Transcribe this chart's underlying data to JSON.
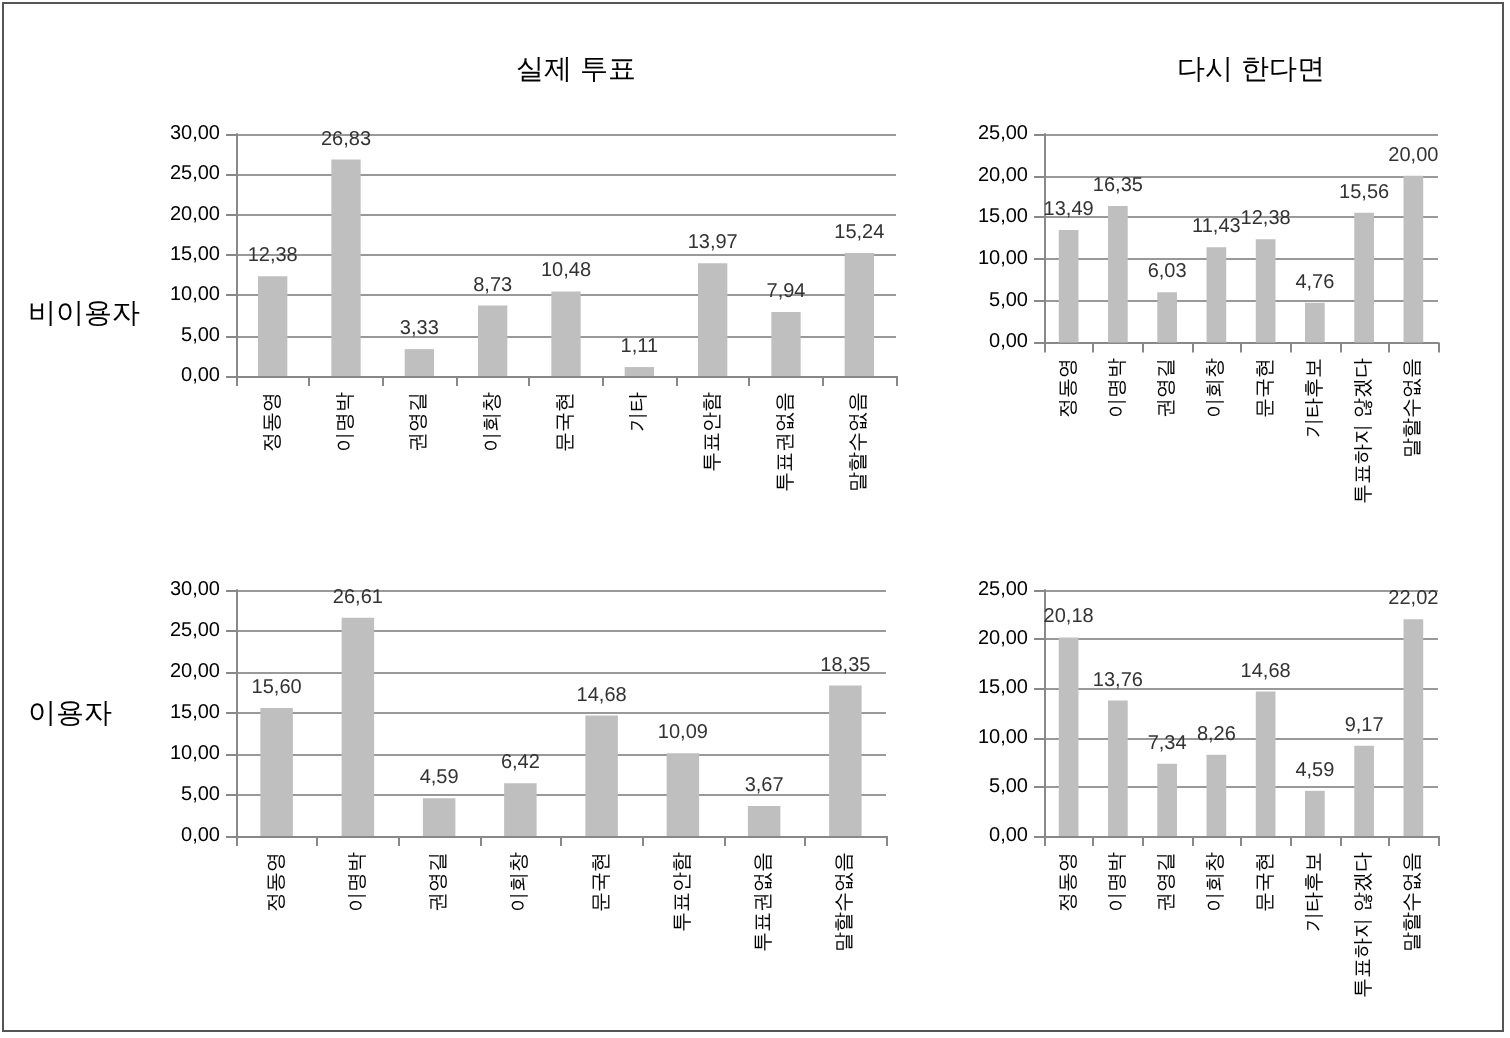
{
  "chart_data": [
    {
      "type": "bar",
      "title": "실제 투표",
      "annotations": [
        "비이용자"
      ],
      "categories": [
        "정동영",
        "이명박",
        "권영길",
        "이회창",
        "문국현",
        "기타",
        "투표안함",
        "투표권없음",
        "말할수없음"
      ],
      "values": [
        12.38,
        26.83,
        3.33,
        8.73,
        10.48,
        1.11,
        13.97,
        7.94,
        15.24
      ],
      "value_labels": [
        "12,38",
        "26,83",
        "3,33",
        "8,73",
        "10,48",
        "1,11",
        "13,97",
        "7,94",
        "15,24"
      ],
      "color": "#bfbfbf",
      "ylim": [
        0,
        30
      ],
      "yticks": [
        {
          "value": 0,
          "label": "0,00"
        },
        {
          "value": 5,
          "label": "5,00"
        },
        {
          "value": 10,
          "label": "10,00"
        },
        {
          "value": 15,
          "label": "15,00"
        },
        {
          "value": 20,
          "label": "20,00"
        },
        {
          "value": 25,
          "label": "25,00"
        },
        {
          "value": 30,
          "label": "30,00"
        }
      ],
      "grid": "y"
    },
    {
      "type": "bar",
      "title": "다시 한다면",
      "categories": [
        "정동영",
        "이명박",
        "권영길",
        "이회창",
        "문국현",
        "기타후보",
        "투표하지 않겠다",
        "말할수없음"
      ],
      "values": [
        13.49,
        16.35,
        6.03,
        11.43,
        12.38,
        4.76,
        15.56,
        20.0
      ],
      "value_labels": [
        "13,49",
        "16,35",
        "6,03",
        "11,43",
        "12,38",
        "4,76",
        "15,56",
        "20,00"
      ],
      "color": "#bfbfbf",
      "ylim": [
        0,
        25
      ],
      "yticks": [
        {
          "value": 0,
          "label": "0,00"
        },
        {
          "value": 5,
          "label": "5,00"
        },
        {
          "value": 10,
          "label": "10,00"
        },
        {
          "value": 15,
          "label": "15,00"
        },
        {
          "value": 20,
          "label": "20,00"
        },
        {
          "value": 25,
          "label": "25,00"
        }
      ],
      "grid": "y"
    },
    {
      "type": "bar",
      "annotations": [
        "이용자"
      ],
      "categories": [
        "정동영",
        "이명박",
        "권영길",
        "이회창",
        "문국현",
        "투표안함",
        "투표권없음",
        "말할수없음"
      ],
      "values": [
        15.6,
        26.61,
        4.59,
        6.42,
        14.68,
        10.09,
        3.67,
        18.35
      ],
      "value_labels": [
        "15,60",
        "26,61",
        "4,59",
        "6,42",
        "14,68",
        "10,09",
        "3,67",
        "18,35"
      ],
      "color": "#bfbfbf",
      "ylim": [
        0,
        30
      ],
      "yticks": [
        {
          "value": 0,
          "label": "0,00"
        },
        {
          "value": 5,
          "label": "5,00"
        },
        {
          "value": 10,
          "label": "10,00"
        },
        {
          "value": 15,
          "label": "15,00"
        },
        {
          "value": 20,
          "label": "20,00"
        },
        {
          "value": 25,
          "label": "25,00"
        },
        {
          "value": 30,
          "label": "30,00"
        }
      ],
      "grid": "y"
    },
    {
      "type": "bar",
      "categories": [
        "정동영",
        "이명박",
        "권영길",
        "이회창",
        "문국현",
        "기타후보",
        "투표하지 않겠다",
        "말할수없음"
      ],
      "values": [
        20.18,
        13.76,
        7.34,
        8.26,
        14.68,
        4.59,
        9.17,
        22.02
      ],
      "value_labels": [
        "20,18",
        "13,76",
        "7,34",
        "8,26",
        "14,68",
        "4,59",
        "9,17",
        "22,02"
      ],
      "color": "#bfbfbf",
      "ylim": [
        0,
        25
      ],
      "yticks": [
        {
          "value": 0,
          "label": "0,00"
        },
        {
          "value": 5,
          "label": "5,00"
        },
        {
          "value": 10,
          "label": "10,00"
        },
        {
          "value": 15,
          "label": "15,00"
        },
        {
          "value": 20,
          "label": "20,00"
        },
        {
          "value": 25,
          "label": "25,00"
        }
      ],
      "grid": "y"
    }
  ]
}
